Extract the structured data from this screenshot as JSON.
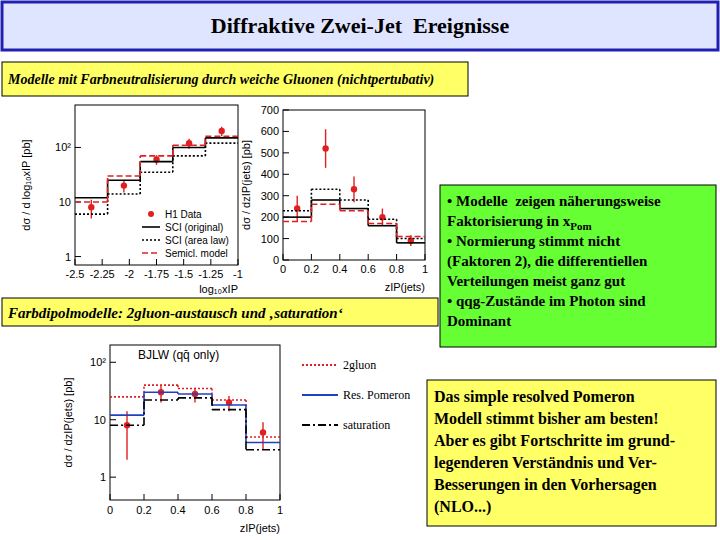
{
  "slide": {
    "title": "Diffraktive Zwei-Jet  Ereignisse",
    "model_box": "Modelle mit Farbneutralisierung durch weiche Gluonen (nichtpertubativ)",
    "dipole_box": "Farbdipolmodelle: 2gluon-austausch und ‚saturation‘",
    "summary": {
      "lines": [
        "• Modelle  zeigen näherungsweise",
        {
          "text": "Faktorisierung in x",
          "sub": "Pom"
        },
        "• Normierung stimmt nicht",
        "(Faktoren 2), die differentiellen",
        "Verteilungen meist ganz gut",
        "• qqg-Zustände im Photon sind",
        "Dominant"
      ]
    },
    "conclusion": {
      "lines": [
        "Das simple resolved Pomeron",
        "Modell stimmt bisher am besten!",
        "Aber es gibt Fortschritte im grund-",
        "legenderen Verständnis und Ver-",
        "Besserungen in den Vorhersagen",
        "(NLO...)"
      ]
    }
  },
  "chart_data": [
    {
      "type": "histogram",
      "log": "y",
      "xlabel": "log₁₀xIP",
      "ylabel": "dσ / d log₁₀xIP [pb]",
      "bins": [
        -2.5,
        -2.2,
        -1.9,
        -1.6,
        -1.3,
        -1.0
      ],
      "xlim": [
        -2.5,
        -1.0
      ],
      "xticks": [
        -2.5,
        -2.25,
        -2,
        -1.75,
        -1.5,
        -1.25,
        -1
      ],
      "ylim": [
        0.7,
        600
      ],
      "yticks": [
        1,
        10,
        {
          "value": 100,
          "label": "10²"
        }
      ],
      "legend": "lower right",
      "series": [
        {
          "name": "H1 Data",
          "type": "scatter",
          "marker": "circle",
          "color": "#e02020",
          "values": [
            8,
            20,
            60,
            120,
            200
          ],
          "errors": [
            3,
            5,
            12,
            25,
            40
          ]
        },
        {
          "name": "SCI (original)",
          "type": "step",
          "line_style": "solid",
          "color": "#000000",
          "values": [
            12,
            25,
            55,
            100,
            150
          ]
        },
        {
          "name": "SCI (area law)",
          "type": "step",
          "line_style": "dotted",
          "color": "#000000",
          "values": [
            6,
            14,
            35,
            70,
            120
          ]
        },
        {
          "name": "Semicl. model",
          "type": "step",
          "line_style": "dashed",
          "color": "#e02020",
          "values": [
            10,
            30,
            70,
            110,
            160
          ]
        }
      ]
    },
    {
      "type": "histogram",
      "xlabel": "zIP(jets)",
      "ylabel": "dσ / dzIP(jets) [pb]",
      "bins": [
        0,
        0.2,
        0.4,
        0.6,
        0.8,
        1
      ],
      "xlim": [
        0,
        1
      ],
      "xticks": [
        0,
        0.2,
        0.4,
        0.6,
        0.8,
        1
      ],
      "ylim": [
        0,
        700
      ],
      "yticks": [
        0,
        100,
        200,
        300,
        400,
        500,
        600,
        700
      ],
      "series": [
        {
          "type": "scatter",
          "marker": "circle",
          "color": "#e02020",
          "values": [
            240,
            520,
            330,
            200,
            90
          ],
          "errors": [
            60,
            90,
            60,
            40,
            25
          ]
        },
        {
          "type": "step",
          "line_style": "solid",
          "color": "#000000",
          "values": [
            200,
            280,
            240,
            160,
            80
          ]
        },
        {
          "type": "step",
          "line_style": "dotted",
          "color": "#000000",
          "values": [
            230,
            330,
            280,
            190,
            100
          ]
        },
        {
          "type": "step",
          "line_style": "dashed",
          "color": "#e02020",
          "values": [
            180,
            260,
            230,
            170,
            110
          ]
        }
      ]
    },
    {
      "type": "histogram",
      "log": "y",
      "xlabel": "zIP(jets)",
      "ylabel": "dσ / dzIP(jets) [pb]",
      "annotations": [
        "BJLW (qq̄ only)"
      ],
      "bins": [
        0,
        0.2,
        0.4,
        0.6,
        0.8,
        1
      ],
      "xlim": [
        0,
        1
      ],
      "xticks": [
        0,
        0.2,
        0.4,
        0.6,
        0.8,
        1
      ],
      "ylim": [
        0.4,
        200
      ],
      "yticks": [
        1,
        10,
        {
          "value": 100,
          "label": "10²"
        }
      ],
      "legend": "right",
      "series": [
        {
          "type": "scatter",
          "marker": "circle",
          "color": "#e02020",
          "values": [
            8,
            30,
            28,
            20,
            6
          ],
          "errors": [
            6,
            10,
            8,
            6,
            3
          ]
        },
        {
          "name": "2gluon",
          "type": "step",
          "line_style": "dotted",
          "color": "#e02020",
          "values": [
            25,
            40,
            35,
            22,
            5
          ]
        },
        {
          "name": "Res. Pomeron",
          "type": "step",
          "line_style": "solid",
          "color": "#2040c0",
          "values": [
            12,
            30,
            28,
            18,
            4
          ]
        },
        {
          "name": "saturation",
          "type": "step",
          "line_style": "dashdot",
          "color": "#000000",
          "values": [
            8,
            22,
            24,
            15,
            3
          ]
        }
      ]
    }
  ]
}
